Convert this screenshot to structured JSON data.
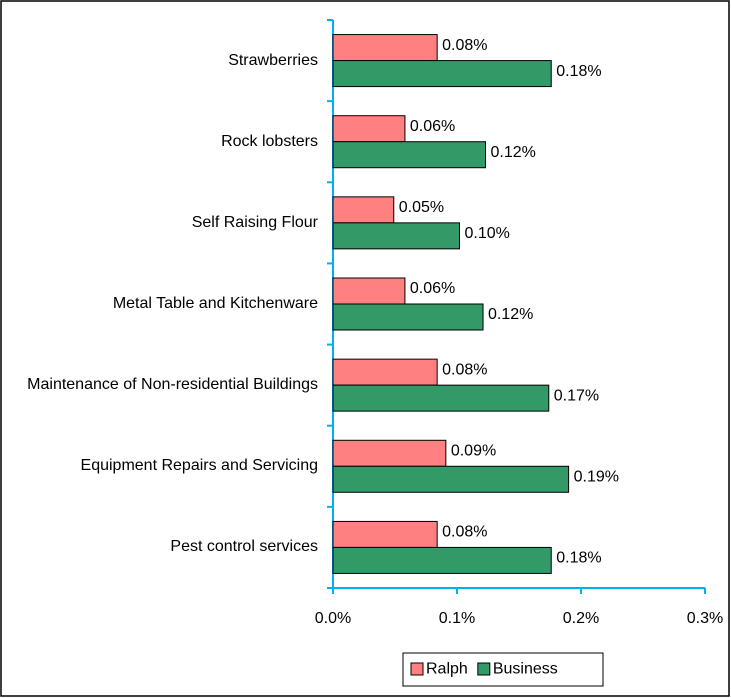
{
  "chart_data": {
    "type": "bar",
    "orientation": "horizontal",
    "categories": [
      "Strawberries",
      "Rock lobsters",
      "Self Raising Flour",
      "Metal Table and Kitchenware",
      "Maintenance of Non-residential Buildings",
      "Equipment Repairs and Servicing",
      "Pest control services"
    ],
    "series": [
      {
        "name": "Ralph",
        "color": "#ff8080",
        "values": [
          0.084,
          0.058,
          0.049,
          0.058,
          0.084,
          0.091,
          0.084
        ],
        "value_labels": [
          "0.08%",
          "0.06%",
          "0.05%",
          "0.06%",
          "0.08%",
          "0.09%",
          "0.08%"
        ]
      },
      {
        "name": "Business",
        "color": "#339966",
        "values": [
          0.176,
          0.123,
          0.102,
          0.121,
          0.174,
          0.19,
          0.176
        ],
        "value_labels": [
          "0.18%",
          "0.12%",
          "0.10%",
          "0.12%",
          "0.17%",
          "0.19%",
          "0.18%"
        ]
      }
    ],
    "xlim": [
      0,
      0.3
    ],
    "xticks": [
      {
        "value": 0,
        "label": "0.0%"
      },
      {
        "value": 0.1,
        "label": "0.1%"
      },
      {
        "value": 0.2,
        "label": "0.2%"
      },
      {
        "value": 0.3,
        "label": "0.3%"
      }
    ],
    "legend": "bottom",
    "grid": false
  }
}
